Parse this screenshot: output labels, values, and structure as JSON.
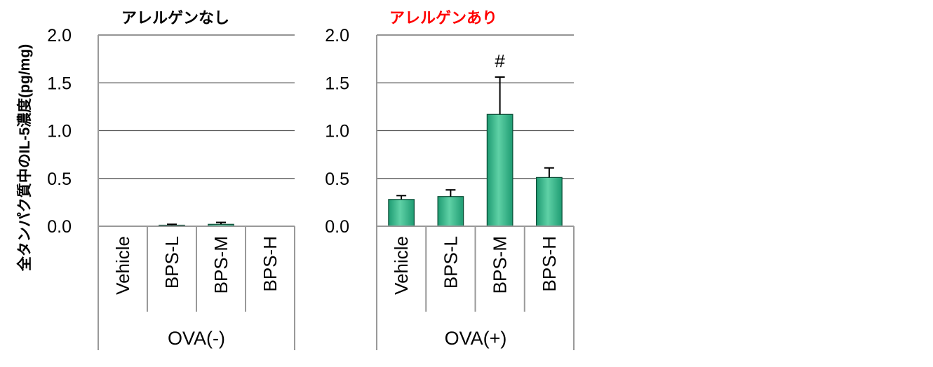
{
  "y_axis_label": "全タンパク質中のIL-5濃度(pg/mg)",
  "colors": {
    "bar_fill": "#1e9b72",
    "bar_highlight": "#5fd1a6",
    "bar_stroke": "#0b4d36",
    "axis": "#999999",
    "grid": "#555555",
    "panel_title_left": "#000000",
    "panel_title_right": "#ff0000"
  },
  "chart_data": [
    {
      "type": "bar",
      "title": "アレルゲンなし",
      "group_label": "OVA(-)",
      "categories": [
        "Vehicle",
        "BPS-L",
        "BPS-M",
        "BPS-H"
      ],
      "values": [
        0.0,
        0.01,
        0.02,
        0.0
      ],
      "errors": [
        0.0,
        0.01,
        0.02,
        0.0
      ],
      "ylim": [
        0,
        2.0
      ],
      "yticks": [
        "0.0",
        "0.5",
        "1.0",
        "1.5",
        "2.0"
      ],
      "ytick_values": [
        0,
        0.5,
        1.0,
        1.5,
        2.0
      ],
      "annotations": [
        "",
        "",
        "",
        ""
      ],
      "grid": true
    },
    {
      "type": "bar",
      "title": "アレルゲンあり",
      "group_label": "OVA(+)",
      "categories": [
        "Vehicle",
        "BPS-L",
        "BPS-M",
        "BPS-H"
      ],
      "values": [
        0.28,
        0.31,
        1.17,
        0.51
      ],
      "errors": [
        0.04,
        0.07,
        0.39,
        0.1
      ],
      "ylim": [
        0,
        2.0
      ],
      "yticks": [
        "0.0",
        "0.5",
        "1.0",
        "1.5",
        "2.0"
      ],
      "ytick_values": [
        0,
        0.5,
        1.0,
        1.5,
        2.0
      ],
      "annotations": [
        "",
        "",
        "#",
        ""
      ],
      "grid": true
    }
  ]
}
